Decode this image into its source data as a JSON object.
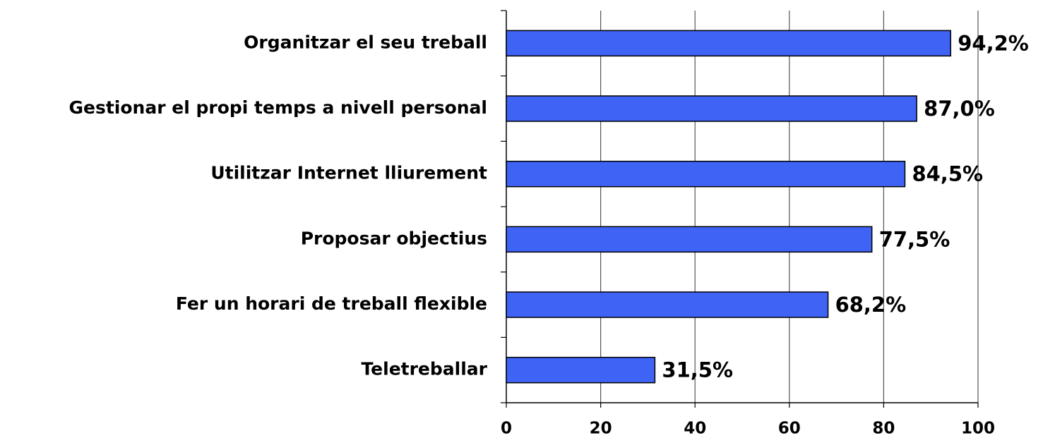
{
  "chart_data": {
    "type": "bar",
    "orientation": "horizontal",
    "categories": [
      "Organitzar el seu treball",
      "Gestionar el propi temps a nivell personal",
      "Utilitzar Internet lliurement",
      "Proposar objectius",
      "Fer un horari de treball flexible",
      "Teletreballar"
    ],
    "values": [
      94.2,
      87.0,
      84.5,
      77.5,
      68.2,
      31.5
    ],
    "value_labels": [
      "94,2%",
      "87,0%",
      "84,5%",
      "77,5%",
      "68,2%",
      "31,5%"
    ],
    "color": "#3f63f5",
    "xlim": [
      0,
      100
    ],
    "xticks": [
      0,
      20,
      40,
      60,
      80,
      100
    ],
    "grid": true
  }
}
